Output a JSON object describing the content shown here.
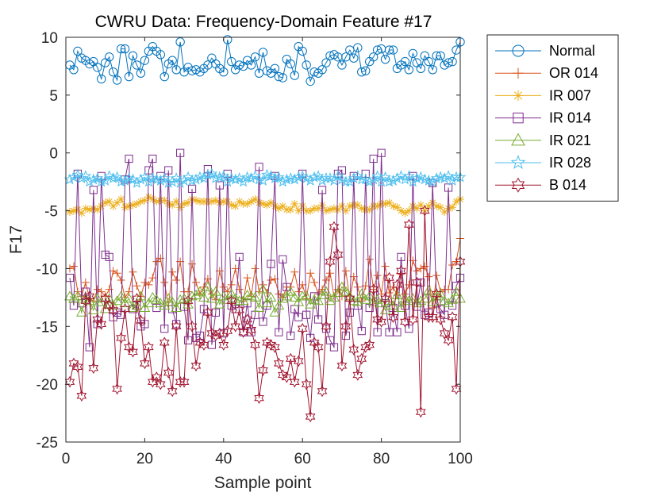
{
  "chart_data": {
    "type": "line",
    "title": "CWRU Data: Frequency-Domain Feature #17",
    "xlabel": "Sample point",
    "ylabel": "F17",
    "xlim": [
      0,
      100
    ],
    "ylim": [
      -25,
      10
    ],
    "xticks": [
      "0",
      "20",
      "40",
      "60",
      "80",
      "100"
    ],
    "yticks": [
      "10",
      "5",
      "0",
      "-5",
      "-10",
      "-15",
      "-20",
      "-25"
    ],
    "xtick_values": [
      0,
      20,
      40,
      60,
      80,
      100
    ],
    "ytick_values": [
      10,
      5,
      0,
      -5,
      -10,
      -15,
      -20,
      -25
    ],
    "grid": false,
    "legend_position": "outside-top-right",
    "x": [
      1,
      2,
      3,
      4,
      5,
      6,
      7,
      8,
      9,
      10,
      11,
      12,
      13,
      14,
      15,
      16,
      17,
      18,
      19,
      20,
      21,
      22,
      23,
      24,
      25,
      26,
      27,
      28,
      29,
      30,
      31,
      32,
      33,
      34,
      35,
      36,
      37,
      38,
      39,
      40,
      41,
      42,
      43,
      44,
      45,
      46,
      47,
      48,
      49,
      50,
      51,
      52,
      53,
      54,
      55,
      56,
      57,
      58,
      59,
      60,
      61,
      62,
      63,
      64,
      65,
      66,
      67,
      68,
      69,
      70,
      71,
      72,
      73,
      74,
      75,
      76,
      77,
      78,
      79,
      80,
      81,
      82,
      83,
      84,
      85,
      86,
      87,
      88,
      89,
      90,
      91,
      92,
      93,
      94,
      95,
      96,
      97,
      98,
      99,
      100
    ],
    "series": [
      {
        "name": "Normal",
        "color": "#0072BD",
        "marker": "circle",
        "values": [
          7.6,
          7.2,
          8.8,
          8.2,
          8.0,
          7.7,
          7.9,
          7.4,
          6.4,
          7.8,
          8.3,
          7.0,
          6.3,
          9.0,
          9.0,
          6.6,
          8.4,
          7.6,
          6.9,
          8.0,
          8.8,
          9.2,
          8.8,
          8.5,
          6.6,
          7.7,
          8.0,
          7.2,
          9.6,
          7.0,
          7.4,
          7.1,
          7.2,
          7.0,
          7.3,
          7.6,
          8.2,
          7.7,
          7.3,
          7.0,
          9.8,
          7.9,
          7.2,
          7.6,
          7.5,
          8.0,
          7.6,
          8.3,
          6.9,
          8.7,
          7.1,
          6.9,
          7.3,
          6.6,
          6.5,
          8.1,
          7.7,
          6.7,
          9.2,
          8.8,
          7.6,
          6.2,
          7.0,
          6.9,
          7.2,
          7.8,
          8.4,
          8.5,
          8.3,
          7.6,
          8.3,
          8.9,
          8.2,
          9.1,
          7.0,
          7.1,
          7.9,
          8.3,
          8.9,
          9.0,
          8.1,
          8.9,
          8.9,
          7.3,
          7.6,
          7.9,
          7.2,
          8.6,
          7.8,
          7.3,
          8.4,
          7.9,
          7.2,
          8.4,
          8.4,
          7.6,
          7.8,
          7.9,
          8.9,
          9.6
        ]
      },
      {
        "name": "OR 014",
        "color": "#D95319",
        "marker": "plus",
        "values": [
          -10.0,
          -9.8,
          -12.0,
          -12.4,
          -11.2,
          -12.6,
          -12.8,
          -11.8,
          -12.0,
          -12.4,
          -11.8,
          -10.2,
          -10.4,
          -11.0,
          -12.5,
          -12.0,
          -10.3,
          -11.5,
          -12.4,
          -11.2,
          -11.4,
          -10.8,
          -9.4,
          -9.1,
          -11.2,
          -13.2,
          -10.3,
          -11.0,
          -9.4,
          -12.0,
          -12.0,
          -9.6,
          -11.2,
          -12.2,
          -11.6,
          -10.9,
          -12.2,
          -12.7,
          -10.2,
          -11.6,
          -12.0,
          -11.4,
          -10.0,
          -11.8,
          -12.8,
          -10.8,
          -12.4,
          -10.0,
          -12.0,
          -11.4,
          -12.1,
          -11.0,
          -10.9,
          -12.2,
          -12.5,
          -11.6,
          -11.6,
          -10.3,
          -12.0,
          -11.4,
          -12.6,
          -10.4,
          -11.2,
          -12.2,
          -11.8,
          -11.0,
          -10.4,
          -12.4,
          -11.8,
          -12.4,
          -10.2,
          -12.7,
          -10.7,
          -11.6,
          -12.8,
          -11.5,
          -9.2,
          -11.8,
          -10.6,
          -12.2,
          -9.8,
          -12.1,
          -11.6,
          -12.3,
          -10.5,
          -12.2,
          -11.4,
          -9.3,
          -10.2,
          -10.0,
          -9.8,
          -10.7,
          -13.4,
          -10.6,
          -12.0,
          -11.8,
          -11.8,
          -9.7,
          -9.4,
          -7.4
        ]
      },
      {
        "name": "IR 007",
        "color": "#EDB120",
        "marker": "asterisk",
        "values": [
          -5.1,
          -5.0,
          -4.9,
          -5.2,
          -4.8,
          -4.9,
          -4.8,
          -4.9,
          -4.6,
          -4.3,
          -4.2,
          -4.6,
          -4.3,
          -4.0,
          -4.7,
          -4.6,
          -4.5,
          -4.4,
          -4.2,
          -4.1,
          -3.8,
          -4.0,
          -4.2,
          -4.1,
          -4.1,
          -4.4,
          -4.5,
          -4.2,
          -4.7,
          -4.4,
          -4.3,
          -4.0,
          -4.1,
          -4.2,
          -4.2,
          -4.2,
          -4.2,
          -4.1,
          -4.3,
          -4.2,
          -4.2,
          -4.5,
          -4.6,
          -4.2,
          -4.4,
          -4.4,
          -4.2,
          -4.0,
          -4.3,
          -4.4,
          -4.5,
          -4.3,
          -4.6,
          -4.8,
          -4.6,
          -4.9,
          -4.9,
          -4.4,
          -5.0,
          -4.6,
          -5.0,
          -5.0,
          -4.8,
          -4.8,
          -4.5,
          -5.0,
          -4.9,
          -4.8,
          -4.9,
          -4.6,
          -5.0,
          -4.6,
          -4.5,
          -4.5,
          -4.8,
          -4.9,
          -4.9,
          -4.6,
          -4.6,
          -4.4,
          -4.4,
          -4.3,
          -4.6,
          -4.7,
          -5.0,
          -5.2,
          -5.0,
          -4.6,
          -4.8,
          -4.5,
          -5.0,
          -4.6,
          -4.3,
          -4.6,
          -4.7,
          -5.1,
          -4.8,
          -4.7,
          -4.2,
          -4.0
        ]
      },
      {
        "name": "IR 014",
        "color": "#7E2F8E",
        "marker": "square",
        "values": [
          -10.8,
          -13.2,
          -1.8,
          -13.0,
          -12.0,
          -16.8,
          -3.2,
          -14.8,
          -2.0,
          -8.8,
          -9.0,
          -14.2,
          -13.8,
          -14.0,
          -2.3,
          -0.5,
          -13.5,
          -13.2,
          -15.0,
          -14.8,
          -1.5,
          -0.5,
          -13.4,
          -2.0,
          -15.2,
          -1.5,
          -13.5,
          -14.8,
          0.0,
          -13.3,
          -16.2,
          -3.1,
          -16.0,
          -15.8,
          -13.5,
          -1.4,
          -16.6,
          -13.8,
          -2.8,
          -15.6,
          -1.8,
          -13.2,
          -13.5,
          -9.0,
          -15.5,
          -13.0,
          -15.5,
          -14.0,
          -1.2,
          -14.6,
          -13.2,
          -9.6,
          -2.0,
          -15.5,
          -9.2,
          -11.6,
          -15.8,
          -13.5,
          -14.2,
          -1.8,
          -14.0,
          -16.0,
          -12.4,
          -14.4,
          -3.2,
          -15.2,
          -16.2,
          -16.8,
          -1.8,
          -1.5,
          -15.8,
          -13.8,
          -2.0,
          -13.2,
          -15.4,
          -1.8,
          -13.4,
          -0.5,
          -15.5,
          0.0,
          -13.0,
          -15.5,
          -13.4,
          -15.5,
          -9.0,
          -13.2,
          -15.2,
          -2.0,
          -13.3,
          -11.2,
          -14.0,
          -13.8,
          -2.6,
          -13.0,
          -13.5,
          -14.0,
          -3.0,
          -13.2,
          -11.5,
          -10.8
        ]
      },
      {
        "name": "IR 021",
        "color": "#77AC30",
        "marker": "triangle",
        "values": [
          -12.4,
          -12.6,
          -12.4,
          -13.8,
          -12.6,
          -12.8,
          -13.6,
          -12.6,
          -12.9,
          -13.5,
          -12.6,
          -13.2,
          -12.8,
          -12.4,
          -13.0,
          -12.6,
          -13.4,
          -13.2,
          -12.4,
          -13.4,
          -13.0,
          -12.5,
          -12.7,
          -13.0,
          -13.2,
          -12.6,
          -12.9,
          -13.4,
          -12.7,
          -12.6,
          -13.1,
          -12.4,
          -12.3,
          -12.0,
          -12.5,
          -11.6,
          -12.6,
          -12.0,
          -13.1,
          -12.4,
          -12.7,
          -12.2,
          -12.6,
          -12.8,
          -12.8,
          -12.3,
          -12.4,
          -12.5,
          -13.4,
          -11.8,
          -13.0,
          -12.5,
          -13.8,
          -13.2,
          -12.6,
          -12.4,
          -12.0,
          -12.5,
          -12.9,
          -12.4,
          -12.4,
          -13.1,
          -12.7,
          -12.8,
          -12.3,
          -12.0,
          -12.8,
          -12.5,
          -12.1,
          -11.6,
          -12.0,
          -12.4,
          -12.8,
          -12.9,
          -12.2,
          -12.7,
          -12.4,
          -12.9,
          -12.7,
          -13.0,
          -13.6,
          -12.8,
          -13.2,
          -12.3,
          -13.4,
          -12.6,
          -12.8,
          -12.6,
          -13.0,
          -12.8,
          -12.6,
          -11.9,
          -12.9,
          -12.4,
          -12.2,
          -12.8,
          -13.0,
          -12.7,
          -12.0,
          -12.6
        ]
      },
      {
        "name": "IR 028",
        "color": "#4DBEEE",
        "marker": "pentagram",
        "values": [
          -2.3,
          -2.1,
          -1.9,
          -2.2,
          -2.0,
          -2.5,
          -2.3,
          -2.2,
          -2.5,
          -2.4,
          -2.0,
          -2.2,
          -2.1,
          -2.5,
          -2.4,
          -2.2,
          -2.3,
          -2.6,
          -2.3,
          -2.1,
          -2.5,
          -2.2,
          -2.3,
          -2.4,
          -2.2,
          -2.6,
          -2.5,
          -2.2,
          -2.6,
          -2.4,
          -2.1,
          -2.4,
          -2.3,
          -2.1,
          -2.2,
          -1.9,
          -1.8,
          -2.2,
          -2.1,
          -2.0,
          -2.5,
          -2.2,
          -2.3,
          -2.2,
          -2.5,
          -2.1,
          -2.2,
          -2.0,
          -2.3,
          -2.4,
          -1.9,
          -2.0,
          -2.2,
          -2.1,
          -2.5,
          -2.3,
          -2.2,
          -2.3,
          -2.1,
          -2.0,
          -2.2,
          -2.4,
          -2.1,
          -2.0,
          -2.4,
          -2.2,
          -2.2,
          -2.4,
          -2.0,
          -2.3,
          -2.5,
          -2.5,
          -2.2,
          -2.0,
          -2.3,
          -2.3,
          -2.5,
          -2.3,
          -2.0,
          -2.5,
          -2.1,
          -2.5,
          -2.4,
          -2.2,
          -2.0,
          -2.3,
          -2.0,
          -2.5,
          -2.2,
          -2.1,
          -2.3,
          -2.4,
          -2.5,
          -2.2,
          -2.1,
          -2.2,
          -2.0,
          -2.4,
          -2.1,
          -2.1
        ]
      },
      {
        "name": "B 014",
        "color": "#A2142F",
        "marker": "hexagram",
        "values": [
          -19.8,
          -18.2,
          -18.5,
          -21.0,
          -12.8,
          -12.4,
          -18.6,
          -14.4,
          -14.8,
          -12.6,
          -13.2,
          -13.6,
          -20.4,
          -16.0,
          -13.5,
          -16.8,
          -17.2,
          -12.6,
          -14.5,
          -18.2,
          -16.8,
          -19.8,
          -19.4,
          -20.0,
          -16.4,
          -19.0,
          -20.6,
          -15.0,
          -19.8,
          -19.8,
          -12.8,
          -15.0,
          -18.4,
          -16.4,
          -16.6,
          -13.8,
          -15.6,
          -15.8,
          -15.6,
          -16.6,
          -15.4,
          -12.8,
          -15.0,
          -13.6,
          -15.5,
          -14.4,
          -15.3,
          -16.6,
          -21.2,
          -18.8,
          -16.4,
          -16.6,
          -16.8,
          -18.2,
          -19.2,
          -19.4,
          -17.8,
          -19.8,
          -18.0,
          -15.2,
          -20.0,
          -22.8,
          -16.4,
          -16.8,
          -20.6,
          -15.0,
          -9.4,
          -6.4,
          -8.8,
          -18.4,
          -15.0,
          -12.6,
          -17.0,
          -19.2,
          -17.8,
          -16.8,
          -16.6,
          -11.8,
          -14.4,
          -14.6,
          -12.6,
          -10.8,
          -14.2,
          -11.4,
          -10.2,
          -14.6,
          -6.2,
          -14.4,
          -11.2,
          -22.4,
          -5.0,
          -14.2,
          -14.2,
          -12.2,
          -14.4,
          -15.6,
          -16.2,
          -14.2,
          -20.4,
          -9.4
        ]
      }
    ]
  }
}
